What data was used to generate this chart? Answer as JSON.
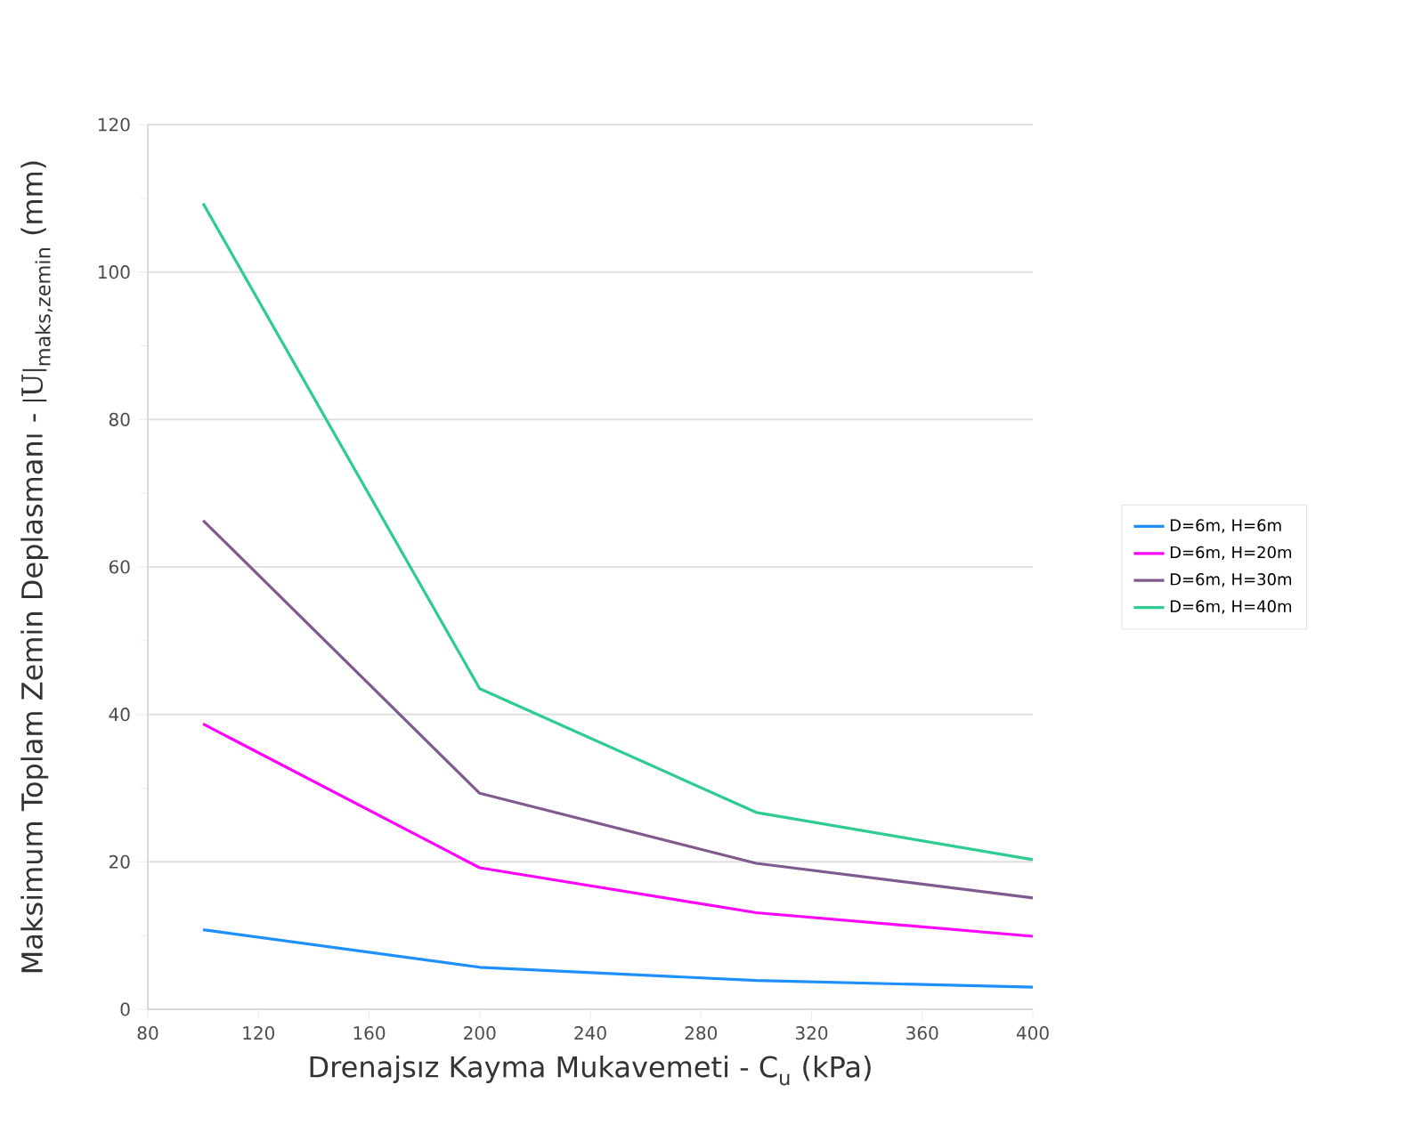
{
  "chart_data": {
    "type": "line",
    "xlabel": "Drenajsız Kayma Mukavemeti - C$_{u}$ (kPa)",
    "ylabel": "\\text{Maksimum Toplam Zemin Deplasmanı - }|\\mathrm{U}|_{\\text{maks,zemin}}\\text{ (mm)}",
    "x": [
      100,
      200,
      300,
      400
    ],
    "series": [
      {
        "name": "D=6m, H=6m",
        "color": "#1e8fff",
        "values": [
          10.8,
          5.7,
          3.9,
          3.0
        ]
      },
      {
        "name": "D=6m, H=20m",
        "color": "#ff00ff",
        "values": [
          38.7,
          19.2,
          13.1,
          9.9
        ]
      },
      {
        "name": "D=6m, H=30m",
        "color": "#7f5a8f",
        "values": [
          66.3,
          29.3,
          19.8,
          15.1
        ]
      },
      {
        "name": "D=6m, H=40m",
        "color": "#2ecc8f",
        "values": [
          109.3,
          43.5,
          26.7,
          20.3
        ]
      }
    ],
    "xlim": [
      80,
      400
    ],
    "xticks": [
      80,
      120,
      160,
      200,
      240,
      280,
      320,
      360,
      400
    ],
    "ylim": [
      0,
      120
    ],
    "yticks": [
      0,
      20,
      40,
      60,
      80,
      100,
      120
    ],
    "grid": "y",
    "legend": "right",
    "marker": "none",
    "line_style": "solid"
  }
}
